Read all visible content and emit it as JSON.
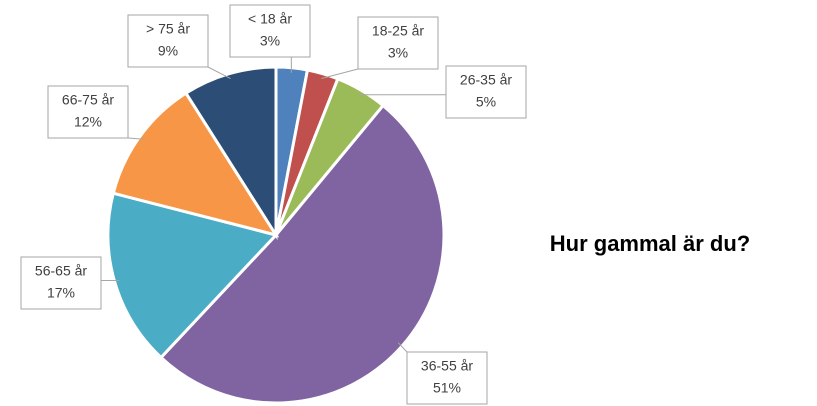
{
  "chart_data": {
    "type": "pie",
    "title": "Hur gammal är du?",
    "categories": [
      "< 18 år",
      "18-25 år",
      "26-35 år",
      "36-55 år",
      "56-65 år",
      "66-75 år",
      "> 75 år"
    ],
    "values": [
      3,
      3,
      5,
      51,
      17,
      12,
      9
    ],
    "value_labels": [
      "3%",
      "3%",
      "5%",
      "51%",
      "17%",
      "12%",
      "9%"
    ],
    "colors": [
      "#4f81bd",
      "#c0504d",
      "#9bbb59",
      "#8064a2",
      "#4bacc6",
      "#f79646",
      "#2c4d75"
    ]
  }
}
